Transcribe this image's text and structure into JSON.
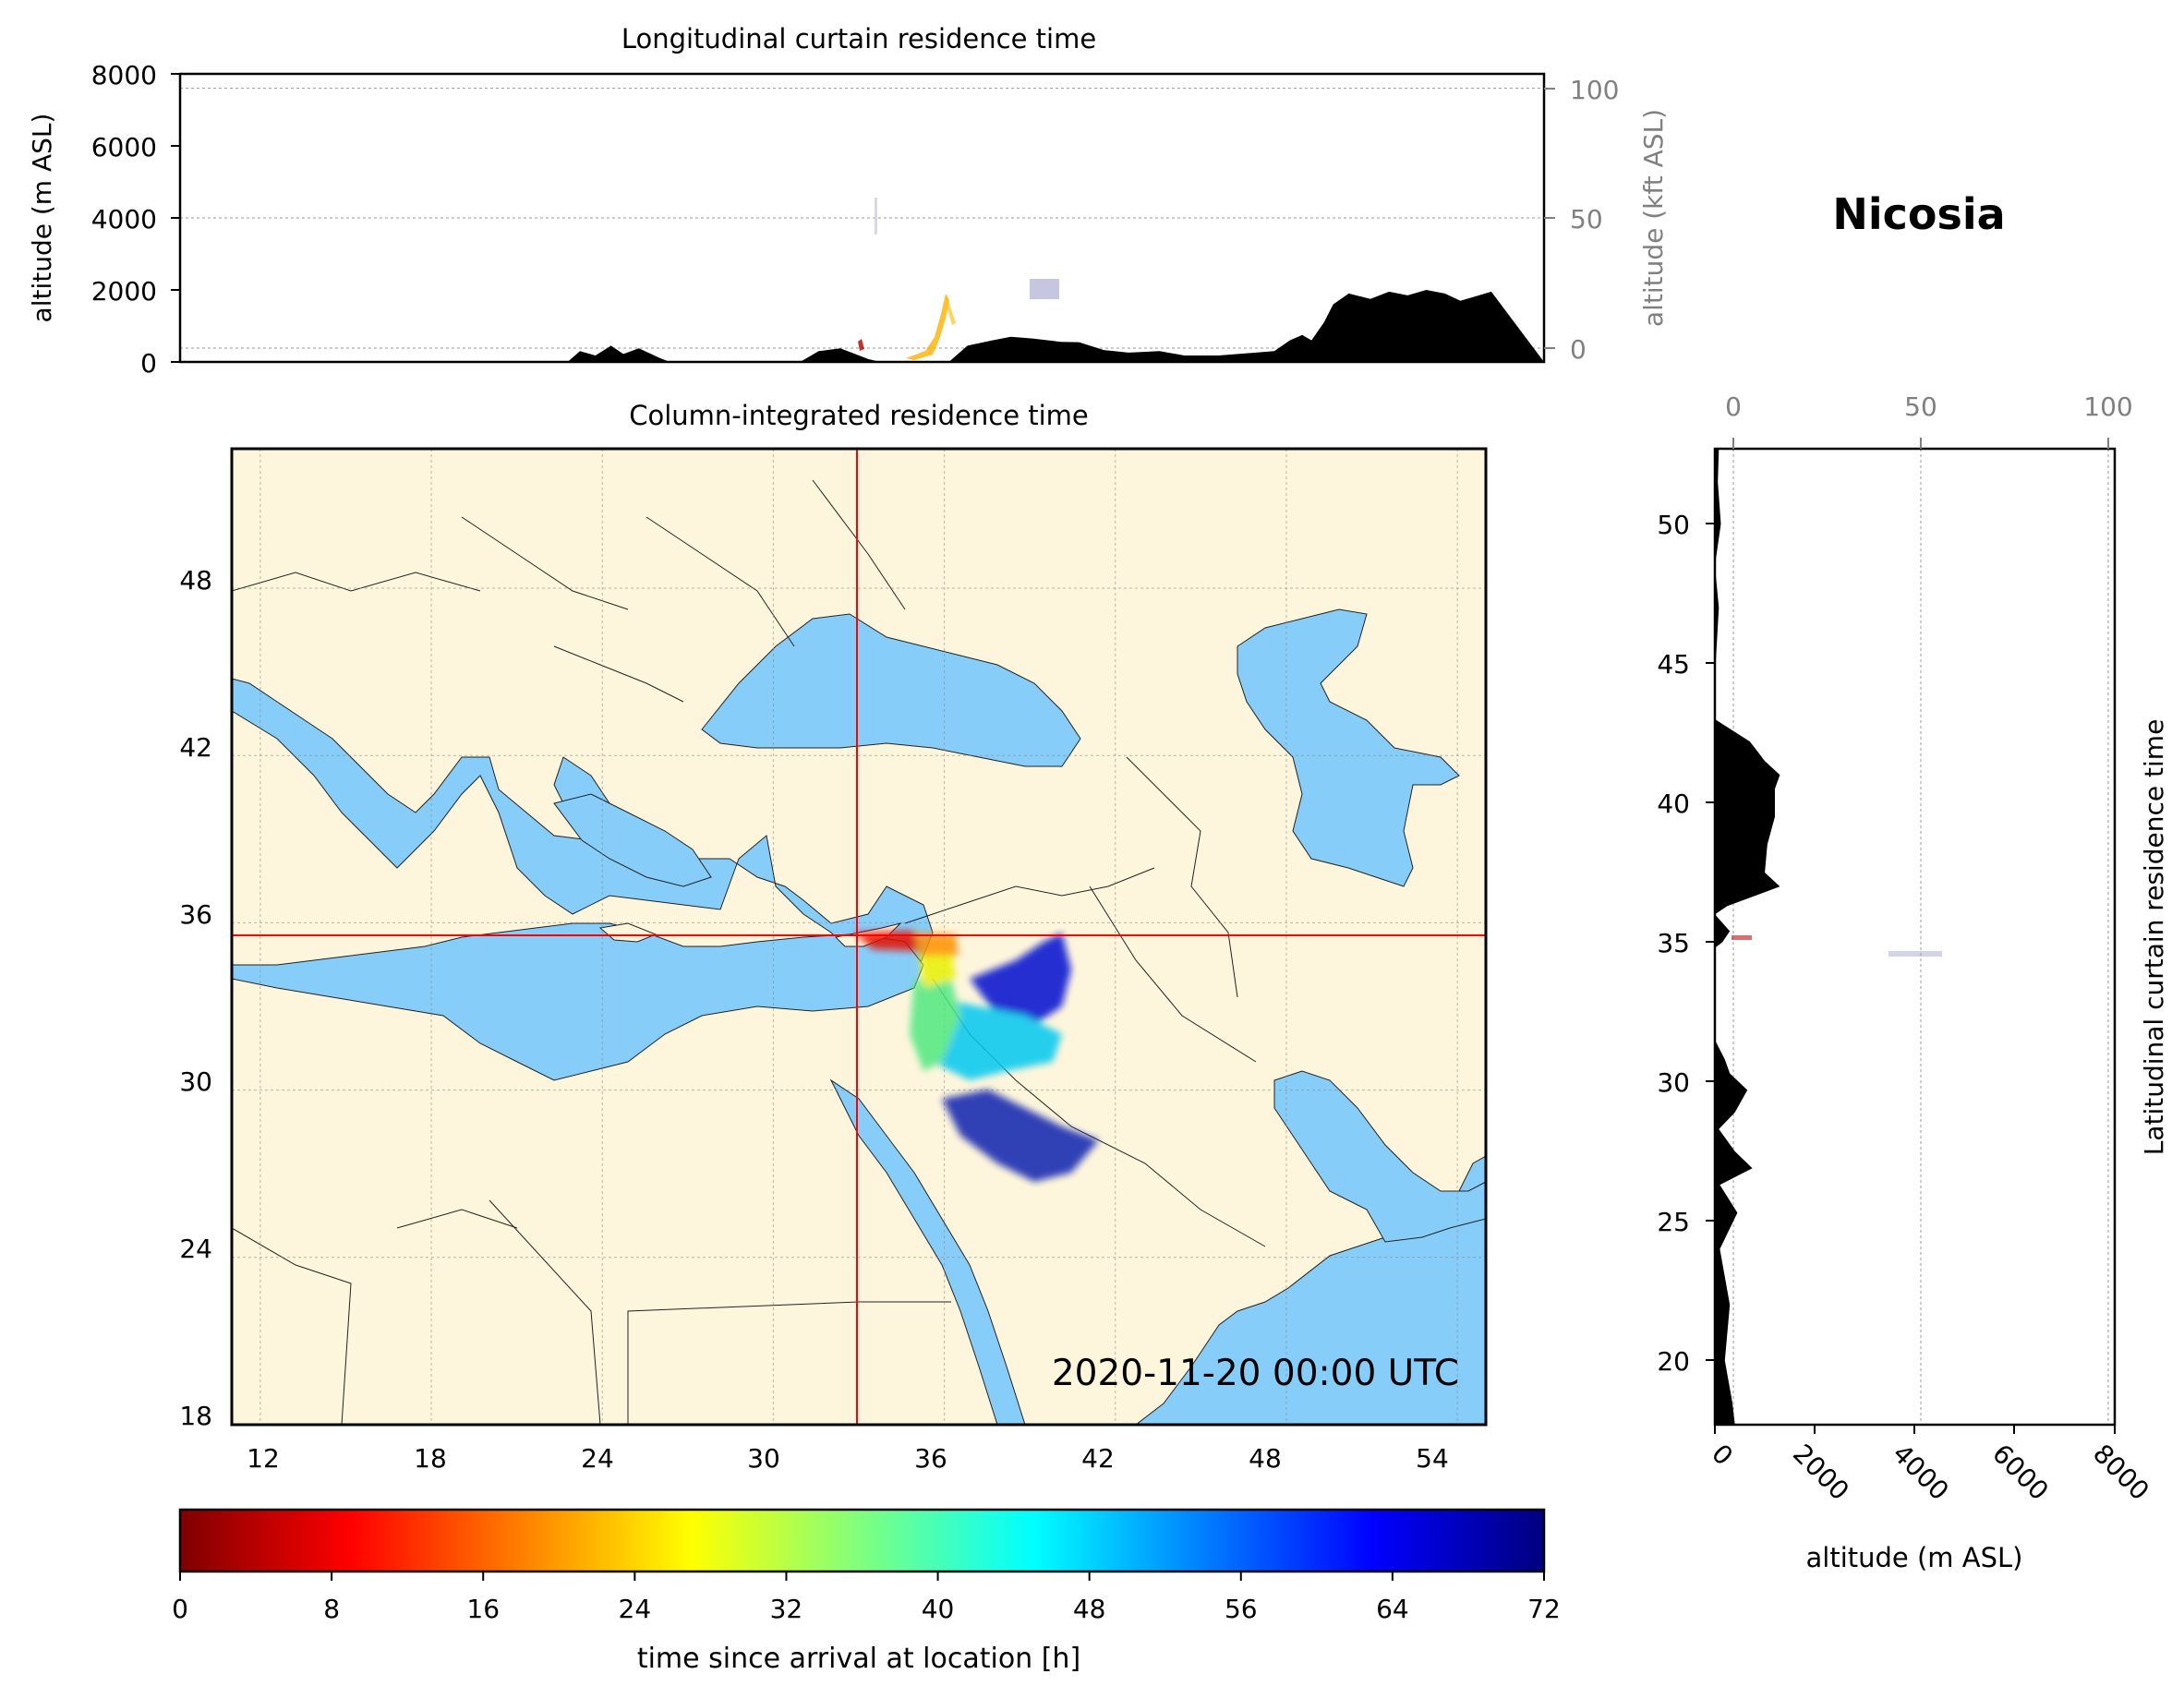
{
  "location_title": "Nicosia",
  "timestamp": "2020-11-20 00:00 UTC",
  "colors": {
    "sea": "#87cdf9",
    "land": "#fef6dc",
    "cross_line": "#ff0000",
    "terrain": "#000000",
    "secondary_axis": "#808080"
  },
  "chart_data": [
    {
      "type": "area",
      "name": "longitudinal_curtain",
      "title": "Longitudinal curtain residence time",
      "ylabel": "altitude (m ASL)",
      "ylabel_right": "altitude (kft ASL)",
      "ylim": [
        0,
        8000
      ],
      "yticks": [
        "0",
        "2000",
        "4000",
        "6000",
        "8000"
      ],
      "yticks_right": [
        "0",
        "50",
        "100"
      ],
      "grid": true,
      "xlim": [
        11,
        55
      ],
      "terrain_profile": {
        "lon": [
          11,
          23.5,
          23.9,
          24.4,
          24.9,
          25.3,
          25.8,
          26.5,
          26.8,
          31.0,
          31.6,
          32.3,
          33.2,
          33.6,
          35.8,
          36.4,
          37.2,
          37.8,
          38.5,
          39.4,
          40.0,
          40.8,
          41.6,
          42.6,
          43.4,
          44.5,
          46.3,
          46.8,
          47.2,
          47.5,
          47.9,
          48.2,
          48.7,
          49.4,
          50.0,
          50.6,
          51.2,
          51.8,
          52.3,
          52.9,
          53.3,
          55
        ],
        "alt_m": [
          0,
          0,
          300,
          180,
          450,
          220,
          380,
          100,
          0,
          0,
          300,
          380,
          80,
          0,
          0,
          450,
          600,
          700,
          650,
          560,
          550,
          330,
          260,
          300,
          180,
          180,
          300,
          600,
          750,
          600,
          1100,
          1600,
          1900,
          1750,
          1950,
          1850,
          2000,
          1900,
          1700,
          1850,
          1950,
          0
        ]
      }
    },
    {
      "type": "heatmap",
      "name": "column_integrated_map",
      "title": "Column-integrated residence time",
      "xlim": [
        11,
        55
      ],
      "ylim": [
        18,
        53
      ],
      "xticks": [
        "12",
        "18",
        "24",
        "30",
        "36",
        "42",
        "48",
        "54"
      ],
      "yticks": [
        "18",
        "24",
        "30",
        "36",
        "42",
        "48"
      ],
      "grid": true,
      "receptor_lon": 33.4,
      "receptor_lat": 35.2
    },
    {
      "type": "area",
      "name": "latitudinal_curtain",
      "ylabel": "Latitudinal curtain residence time",
      "xlabel": "altitude (m ASL)",
      "xlim": [
        0,
        8000
      ],
      "xticks": [
        "0",
        "2000",
        "4000",
        "6000",
        "8000"
      ],
      "xticks_top": [
        "0",
        "50",
        "100"
      ],
      "ylim": [
        17.7,
        52.7
      ],
      "yticks": [
        "20",
        "25",
        "30",
        "35",
        "40",
        "45",
        "50"
      ],
      "grid": true,
      "terrain_profile": {
        "lat": [
          17.7,
          18.5,
          20.0,
          22.0,
          24.0,
          25.3,
          26.3,
          26.9,
          27.5,
          28.3,
          28.9,
          29.7,
          30.3,
          30.8,
          31.5,
          34.8,
          35.0,
          35.4,
          36.0,
          36.3,
          37.0,
          37.5,
          38.5,
          39.5,
          40.5,
          41.0,
          41.5,
          42.2,
          43.0,
          44.5,
          47.0,
          48.5,
          50.0,
          51.5,
          52.7
        ],
        "alt_m": [
          400,
          350,
          200,
          300,
          100,
          450,
          100,
          750,
          400,
          80,
          400,
          650,
          300,
          200,
          0,
          0,
          150,
          300,
          0,
          250,
          1300,
          1000,
          1050,
          1200,
          1200,
          1300,
          1000,
          700,
          0,
          0,
          80,
          0,
          120,
          60,
          80
        ]
      }
    },
    {
      "type": "heatmap",
      "name": "colorbar",
      "label": "time since arrival at location [h]",
      "range": [
        0,
        72
      ],
      "ticks": [
        "0",
        "8",
        "16",
        "24",
        "32",
        "40",
        "48",
        "56",
        "64",
        "72"
      ],
      "colormap": [
        "#7f0000",
        "#ff0000",
        "#ff7f00",
        "#ffff00",
        "#7fff7f",
        "#00ffff",
        "#007fff",
        "#0000ff",
        "#00007f"
      ]
    }
  ]
}
